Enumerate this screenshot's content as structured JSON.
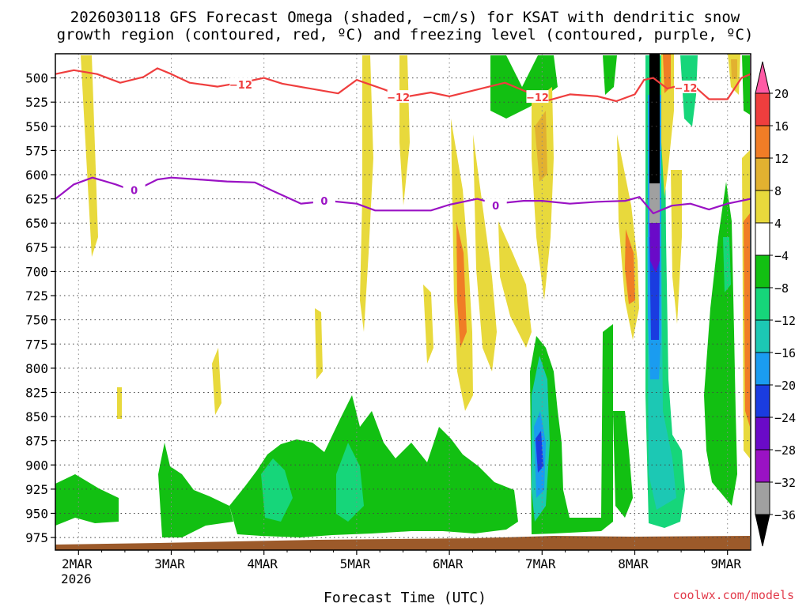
{
  "title_line1": "2026030118 GFS Forecast Omega (shaded, −cm/s) for KSAT with dendritic snow",
  "title_line2": "growth region (contoured, red, ºC) and freezing level (contoured, purple, ºC)",
  "credit": "coolwx.com/models",
  "chart_data": {
    "type": "heatmap",
    "title": "2026030118 GFS Forecast Omega (shaded, −cm/s) for KSAT with dendritic snow growth region (contoured, red, ºC) and freezing level (contoured, purple, ºC)",
    "xlabel": "Forecast Time (UTC)",
    "ylabel": "",
    "x_ticks": [
      "2MAR",
      "3MAR",
      "4MAR",
      "5MAR",
      "6MAR",
      "7MAR",
      "8MAR",
      "9MAR"
    ],
    "x_tick_sublabel": "2026",
    "x_range_days": [
      1.75,
      9.25
    ],
    "y_ticks": [
      500,
      525,
      550,
      575,
      600,
      625,
      650,
      675,
      700,
      725,
      750,
      775,
      800,
      825,
      850,
      875,
      900,
      925,
      950,
      975
    ],
    "y_range_hpa": [
      475,
      988
    ],
    "grid": true,
    "colorbar": {
      "labels": [
        "20",
        "16",
        "12",
        "8",
        "4",
        "−4",
        "−8",
        "−12",
        "−16",
        "−20",
        "−24",
        "−28",
        "−32",
        "−36"
      ],
      "colors": [
        "#ff5aa5",
        "#ef3e3e",
        "#f07d26",
        "#e2b130",
        "#e8d93c",
        "#ffffff",
        "#12c012",
        "#16d67a",
        "#1cc8b4",
        "#1a9cf0",
        "#1a3ce0",
        "#6a0ac8",
        "#9a12c4",
        "#a0a0a0",
        "#000000"
      ]
    },
    "contours": [
      {
        "name": "dendritic snow growth (−12 ºC)",
        "label": "−12",
        "color": "#ef3e3e",
        "points": [
          [
            1.75,
            496
          ],
          [
            1.95,
            492
          ],
          [
            2.2,
            496
          ],
          [
            2.45,
            505
          ],
          [
            2.7,
            499
          ],
          [
            2.85,
            490
          ],
          [
            3.0,
            496
          ],
          [
            3.2,
            505
          ],
          [
            3.5,
            509
          ],
          [
            3.8,
            504
          ],
          [
            4.0,
            500
          ],
          [
            4.2,
            506
          ],
          [
            4.5,
            511
          ],
          [
            4.8,
            516
          ],
          [
            5.0,
            502
          ],
          [
            5.3,
            512
          ],
          [
            5.5,
            520
          ],
          [
            5.8,
            515
          ],
          [
            6.0,
            519
          ],
          [
            6.3,
            512
          ],
          [
            6.6,
            505
          ],
          [
            6.85,
            515
          ],
          [
            7.0,
            525
          ],
          [
            7.3,
            517
          ],
          [
            7.6,
            519
          ],
          [
            7.8,
            524
          ],
          [
            8.0,
            517
          ],
          [
            8.1,
            502
          ],
          [
            8.2,
            500
          ],
          [
            8.35,
            511
          ],
          [
            8.6,
            505
          ],
          [
            8.8,
            522
          ],
          [
            9.0,
            522
          ],
          [
            9.15,
            500
          ],
          [
            9.25,
            496
          ]
        ],
        "label_positions": [
          [
            3.75,
            507
          ],
          [
            5.45,
            520
          ],
          [
            6.95,
            520
          ],
          [
            8.55,
            510
          ]
        ]
      },
      {
        "name": "freezing level (0 ºC)",
        "label": "0",
        "color": "#9a12c4",
        "points": [
          [
            1.75,
            625
          ],
          [
            1.95,
            610
          ],
          [
            2.15,
            603
          ],
          [
            2.4,
            610
          ],
          [
            2.6,
            617
          ],
          [
            2.85,
            605
          ],
          [
            3.0,
            603
          ],
          [
            3.3,
            605
          ],
          [
            3.6,
            607
          ],
          [
            3.9,
            608
          ],
          [
            4.1,
            617
          ],
          [
            4.4,
            630
          ],
          [
            4.7,
            627
          ],
          [
            5.0,
            630
          ],
          [
            5.2,
            637
          ],
          [
            5.5,
            637
          ],
          [
            5.8,
            637
          ],
          [
            6.0,
            631
          ],
          [
            6.3,
            625
          ],
          [
            6.5,
            630
          ],
          [
            6.8,
            627
          ],
          [
            7.0,
            627
          ],
          [
            7.3,
            630
          ],
          [
            7.6,
            628
          ],
          [
            7.9,
            627
          ],
          [
            8.05,
            623
          ],
          [
            8.2,
            640
          ],
          [
            8.4,
            632
          ],
          [
            8.6,
            630
          ],
          [
            8.8,
            636
          ],
          [
            9.0,
            630
          ],
          [
            9.25,
            625
          ]
        ],
        "label_positions": [
          [
            2.6,
            616
          ],
          [
            4.65,
            627
          ],
          [
            6.5,
            632
          ]
        ]
      }
    ]
  }
}
